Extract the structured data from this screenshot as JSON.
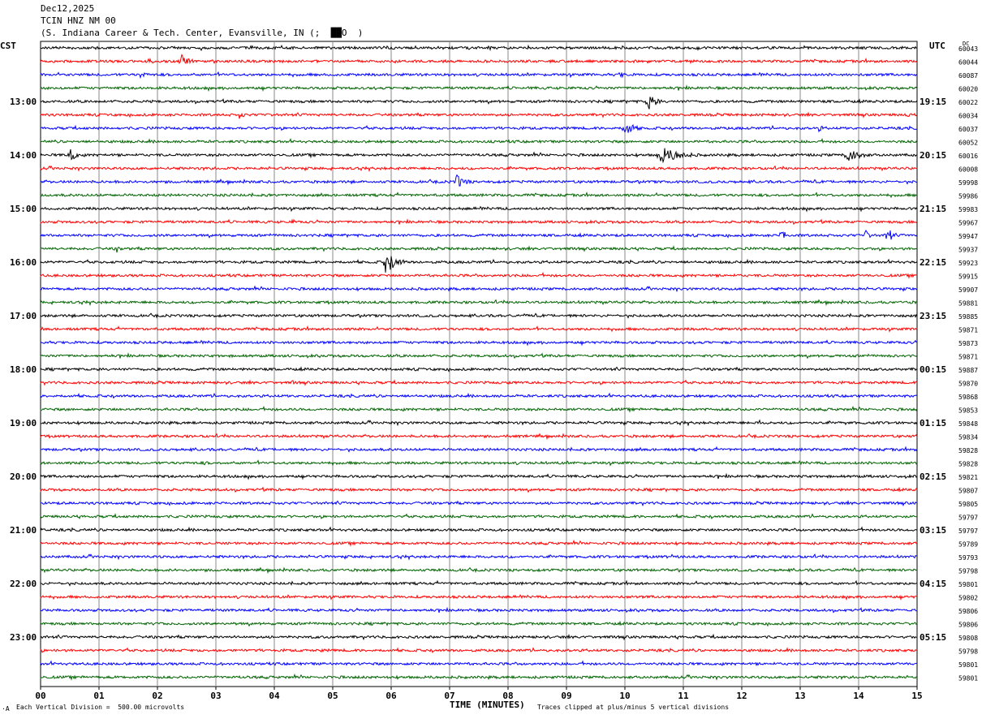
{
  "header": {
    "date": "Dec12,2025",
    "station": "TCIN HNZ NM 00",
    "location": "(S. Indiana Career & Tech. Center, Evansville, IN (;  ██O  )"
  },
  "left_tz": "CST",
  "right_tz": "UTC",
  "dc_label": "DC",
  "footer": {
    "left": "Each Vertical Division =  500.00 microvolts",
    "right": "Traces clipped at plus/minus 5 vertical divisions",
    "corner_mark": "·A"
  },
  "colors": [
    "#000000",
    "#ff0000",
    "#0000ff",
    "#006400"
  ],
  "chart_data": {
    "type": "line",
    "title": "TCIN HNZ NM 00",
    "xlabel": "TIME (MINUTES)",
    "xlim": [
      0,
      15
    ],
    "x_ticks": [
      "00",
      "01",
      "02",
      "03",
      "04",
      "05",
      "06",
      "07",
      "08",
      "09",
      "10",
      "11",
      "12",
      "13",
      "14",
      "15"
    ],
    "left_hour_labels": [
      "13:00",
      "14:00",
      "15:00",
      "16:00",
      "17:00",
      "18:00",
      "19:00",
      "20:00",
      "21:00",
      "22:00",
      "23:00"
    ],
    "right_hour_labels": [
      "19:15",
      "20:15",
      "21:15",
      "22:15",
      "23:15",
      "00:15",
      "01:15",
      "02:15",
      "03:15",
      "04:15",
      "05:15"
    ],
    "dc_offsets": [
      60043,
      60044,
      60087,
      60020,
      60022,
      60034,
      60037,
      60052,
      60016,
      60008,
      59998,
      59986,
      59983,
      59967,
      59947,
      59937,
      59923,
      59915,
      59907,
      59881,
      59885,
      59871,
      59873,
      59871,
      59887,
      59870,
      59868,
      59853,
      59848,
      59834,
      59828,
      59828,
      59821,
      59807,
      59805,
      59797,
      59797,
      59789,
      59793,
      59798,
      59801,
      59802,
      59806,
      59806,
      59808,
      59798,
      59801,
      59801
    ],
    "events": [
      {
        "trace": 0,
        "minute": 0.9,
        "amp": 3,
        "dur": 0.2
      },
      {
        "trace": 0,
        "minute": 5.9,
        "amp": 3,
        "dur": 0.3
      },
      {
        "trace": 1,
        "minute": 1.8,
        "amp": 5,
        "dur": 0.3
      },
      {
        "trace": 1,
        "minute": 2.4,
        "amp": 9,
        "dur": 0.3
      },
      {
        "trace": 2,
        "minute": 1.7,
        "amp": 4,
        "dur": 0.4
      },
      {
        "trace": 2,
        "minute": 9.9,
        "amp": 4,
        "dur": 0.3
      },
      {
        "trace": 4,
        "minute": 10.4,
        "amp": 13,
        "dur": 0.25
      },
      {
        "trace": 5,
        "minute": 3.4,
        "amp": 5,
        "dur": 0.2
      },
      {
        "trace": 5,
        "minute": 3.8,
        "amp": 4,
        "dur": 0.2
      },
      {
        "trace": 5,
        "minute": 14.8,
        "amp": 4,
        "dur": 0.2
      },
      {
        "trace": 6,
        "minute": 10.0,
        "amp": 11,
        "dur": 0.3
      },
      {
        "trace": 6,
        "minute": 13.3,
        "amp": 5,
        "dur": 0.2
      },
      {
        "trace": 8,
        "minute": 0.5,
        "amp": 11,
        "dur": 0.2
      },
      {
        "trace": 8,
        "minute": 10.6,
        "amp": 11,
        "dur": 0.7
      },
      {
        "trace": 8,
        "minute": 13.8,
        "amp": 11,
        "dur": 0.4
      },
      {
        "trace": 10,
        "minute": 7.1,
        "amp": 10,
        "dur": 0.3
      },
      {
        "trace": 13,
        "minute": 4.3,
        "amp": 4,
        "dur": 0.15
      },
      {
        "trace": 14,
        "minute": 12.7,
        "amp": 14,
        "dur": 0.08
      },
      {
        "trace": 14,
        "minute": 14.1,
        "amp": 9,
        "dur": 0.15
      },
      {
        "trace": 14,
        "minute": 14.5,
        "amp": 18,
        "dur": 0.1
      },
      {
        "trace": 15,
        "minute": 1.3,
        "amp": 5,
        "dur": 0.15
      },
      {
        "trace": 16,
        "minute": 5.9,
        "amp": 16,
        "dur": 0.35
      },
      {
        "trace": 25,
        "minute": 4.3,
        "amp": 4,
        "dur": 0.1
      },
      {
        "trace": 28,
        "minute": 12.3,
        "amp": 4,
        "dur": 0.1
      },
      {
        "trace": 31,
        "minute": 2.8,
        "amp": 4,
        "dur": 0.15
      },
      {
        "trace": 38,
        "minute": 10.8,
        "amp": 3,
        "dur": 0.15
      },
      {
        "trace": 45,
        "minute": 4.8,
        "amp": 4,
        "dur": 0.1
      },
      {
        "trace": 45,
        "minute": 9.0,
        "amp": 3,
        "dur": 0.15
      }
    ]
  }
}
